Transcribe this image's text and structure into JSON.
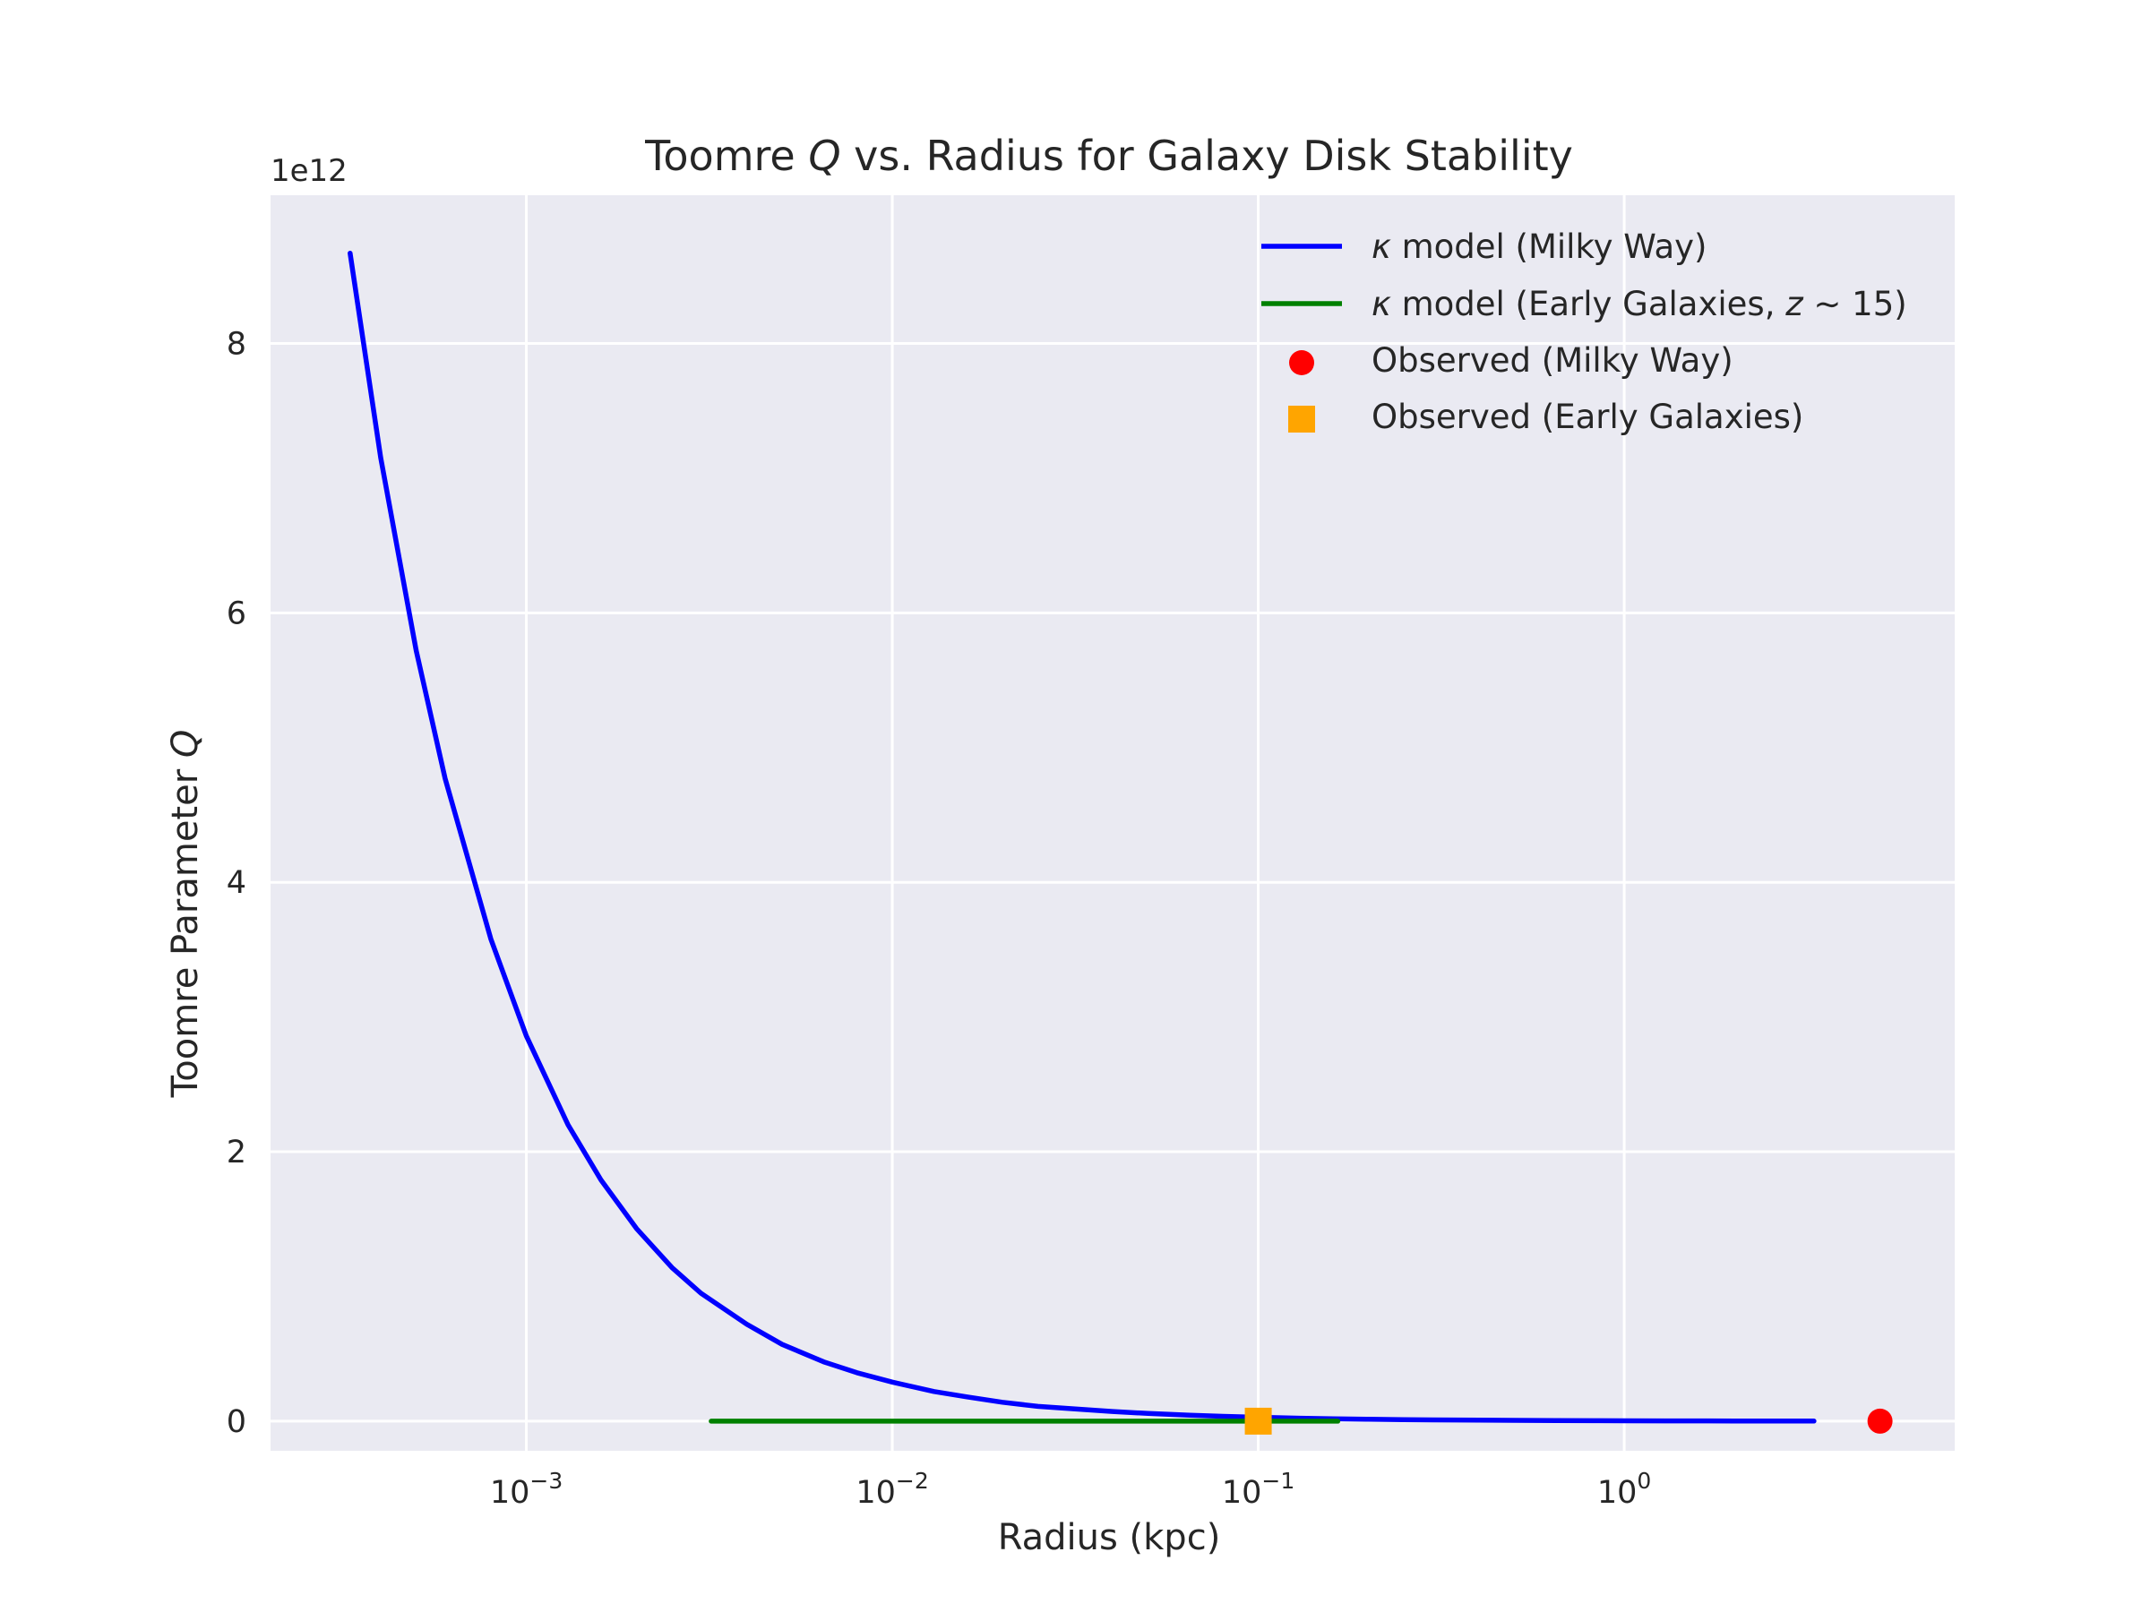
{
  "chart_data": {
    "type": "line",
    "title": "Toomre Q vs. Radius for Galaxy Disk Stability",
    "title_parts": [
      {
        "text": "Toomre ",
        "italic": false
      },
      {
        "text": "Q",
        "italic": true
      },
      {
        "text": " vs. Radius for Galaxy Disk Stability",
        "italic": false
      }
    ],
    "xlabel": "Radius (kpc)",
    "ylabel": "Toomre Parameter Q",
    "ylabel_parts": [
      {
        "text": "Toomre Parameter ",
        "italic": false
      },
      {
        "text": "Q",
        "italic": true
      }
    ],
    "y_offset_label": "1e12",
    "xscale": "log",
    "xlim": [
      0.0002,
      8
    ],
    "ylim": [
      -0.22,
      9.1
    ],
    "y_scale_factor": 1000000000000.0,
    "grid": true,
    "legend_position": "top-right",
    "x_ticks": [
      {
        "value": 0.001,
        "base": "10",
        "exp": "−3"
      },
      {
        "value": 0.01,
        "base": "10",
        "exp": "−2"
      },
      {
        "value": 0.1,
        "base": "10",
        "exp": "−1"
      },
      {
        "value": 1,
        "base": "10",
        "exp": "0"
      }
    ],
    "y_ticks": [
      {
        "value": 0,
        "label": "0"
      },
      {
        "value": 2,
        "label": "2"
      },
      {
        "value": 4,
        "label": "4"
      },
      {
        "value": 6,
        "label": "6"
      },
      {
        "value": 8,
        "label": "8"
      }
    ],
    "series": [
      {
        "name": "κ model (Milky Way)",
        "legend_parts": [
          {
            "text": "κ",
            "italic": true
          },
          {
            "text": " model (Milky Way)",
            "italic": false
          }
        ],
        "kind": "line",
        "color": "#0000ff",
        "x": [
          0.00033,
          0.0004,
          0.0005,
          0.0006,
          0.0008,
          0.001,
          0.0013,
          0.0016,
          0.002,
          0.0025,
          0.003,
          0.004,
          0.005,
          0.0065,
          0.008,
          0.01,
          0.013,
          0.016,
          0.02,
          0.025,
          0.03,
          0.04,
          0.05,
          0.065,
          0.08,
          0.1,
          0.13,
          0.16,
          0.2,
          0.25,
          0.3,
          0.4,
          0.5,
          0.65,
          0.85,
          1.0,
          1.3,
          1.6,
          2.0,
          2.5,
          3.3
        ],
        "y": [
          8.67,
          7.15,
          5.72,
          4.77,
          3.58,
          2.86,
          2.2,
          1.79,
          1.43,
          1.14,
          0.95,
          0.72,
          0.57,
          0.44,
          0.36,
          0.29,
          0.22,
          0.18,
          0.14,
          0.11,
          0.095,
          0.072,
          0.057,
          0.044,
          0.036,
          0.029,
          0.022,
          0.018,
          0.014,
          0.011,
          0.0095,
          0.0072,
          0.0057,
          0.0044,
          0.0034,
          0.0029,
          0.0022,
          0.0018,
          0.0014,
          0.0011,
          0.0009
        ]
      },
      {
        "name": "κ model (Early Galaxies, z ∼ 15)",
        "legend_parts": [
          {
            "text": "κ",
            "italic": true
          },
          {
            "text": " model (Early Galaxies, ",
            "italic": false
          },
          {
            "text": "z",
            "italic": true
          },
          {
            "text": " ∼ 15)",
            "italic": false
          }
        ],
        "kind": "line",
        "color": "#008000",
        "x": [
          0.0032,
          0.01,
          0.03,
          0.1,
          0.165
        ],
        "y": [
          0.0,
          0.0,
          0.0,
          0.0,
          0.0
        ]
      },
      {
        "name": "Observed (Milky Way)",
        "legend_parts": [
          {
            "text": "Observed (Milky Way)",
            "italic": false
          }
        ],
        "kind": "marker-circle",
        "color": "#ff0000",
        "x": [
          5.0
        ],
        "y": [
          0.0
        ]
      },
      {
        "name": "Observed (Early Galaxies)",
        "legend_parts": [
          {
            "text": "Observed (Early Galaxies)",
            "italic": false
          }
        ],
        "kind": "marker-square",
        "color": "#ffa500",
        "x": [
          0.1
        ],
        "y": [
          0.0
        ]
      }
    ]
  },
  "colors": {
    "plot_background": "#eaeaf2",
    "grid": "#ffffff",
    "text": "#262626"
  }
}
